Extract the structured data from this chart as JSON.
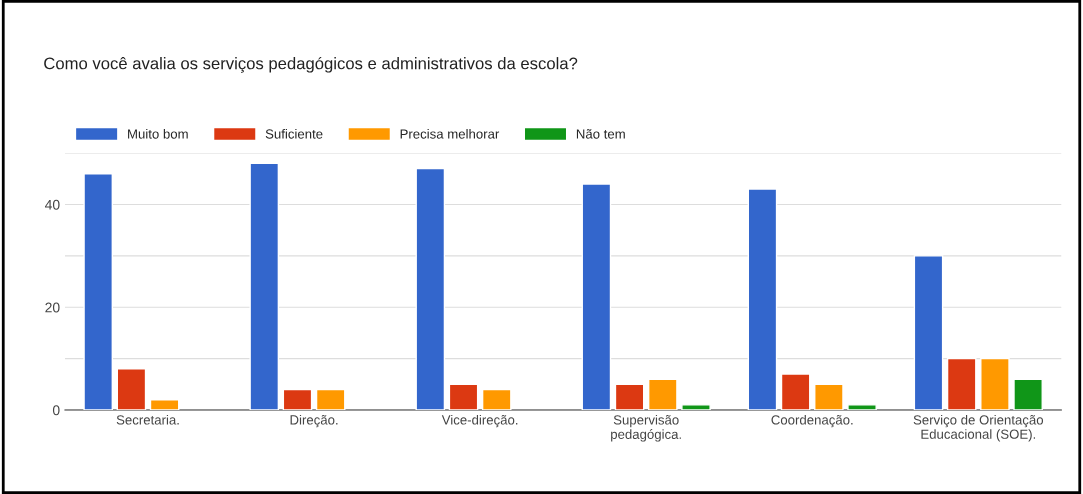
{
  "chart_data": {
    "type": "bar",
    "title": "Como você avalia os serviços pedagógicos e administrativos da escola?",
    "categories": [
      "Secretaria.",
      "Direção.",
      "Vice-direção.",
      "Supervisão\npedagógica.",
      "Coordenação.",
      "Serviço de Orientação\nEducacional (SOE)."
    ],
    "series": [
      {
        "name": "Muito bom",
        "color": "#3366cc",
        "values": [
          46,
          48,
          47,
          44,
          43,
          30
        ]
      },
      {
        "name": "Suficiente",
        "color": "#dc3912",
        "values": [
          8,
          4,
          5,
          5,
          7,
          10
        ]
      },
      {
        "name": "Precisa melhorar",
        "color": "#ff9900",
        "values": [
          2,
          4,
          4,
          6,
          5,
          10
        ]
      },
      {
        "name": "Não tem",
        "color": "#109618",
        "values": [
          null,
          null,
          null,
          1,
          1,
          6
        ]
      }
    ],
    "ylim": [
      0,
      50
    ],
    "yticks": [
      0,
      {
        "value": 10,
        "label": null
      },
      20,
      {
        "value": 30,
        "label": null
      },
      40,
      {
        "value": 50,
        "label": null
      }
    ],
    "grid": "y",
    "legend": "top left"
  }
}
